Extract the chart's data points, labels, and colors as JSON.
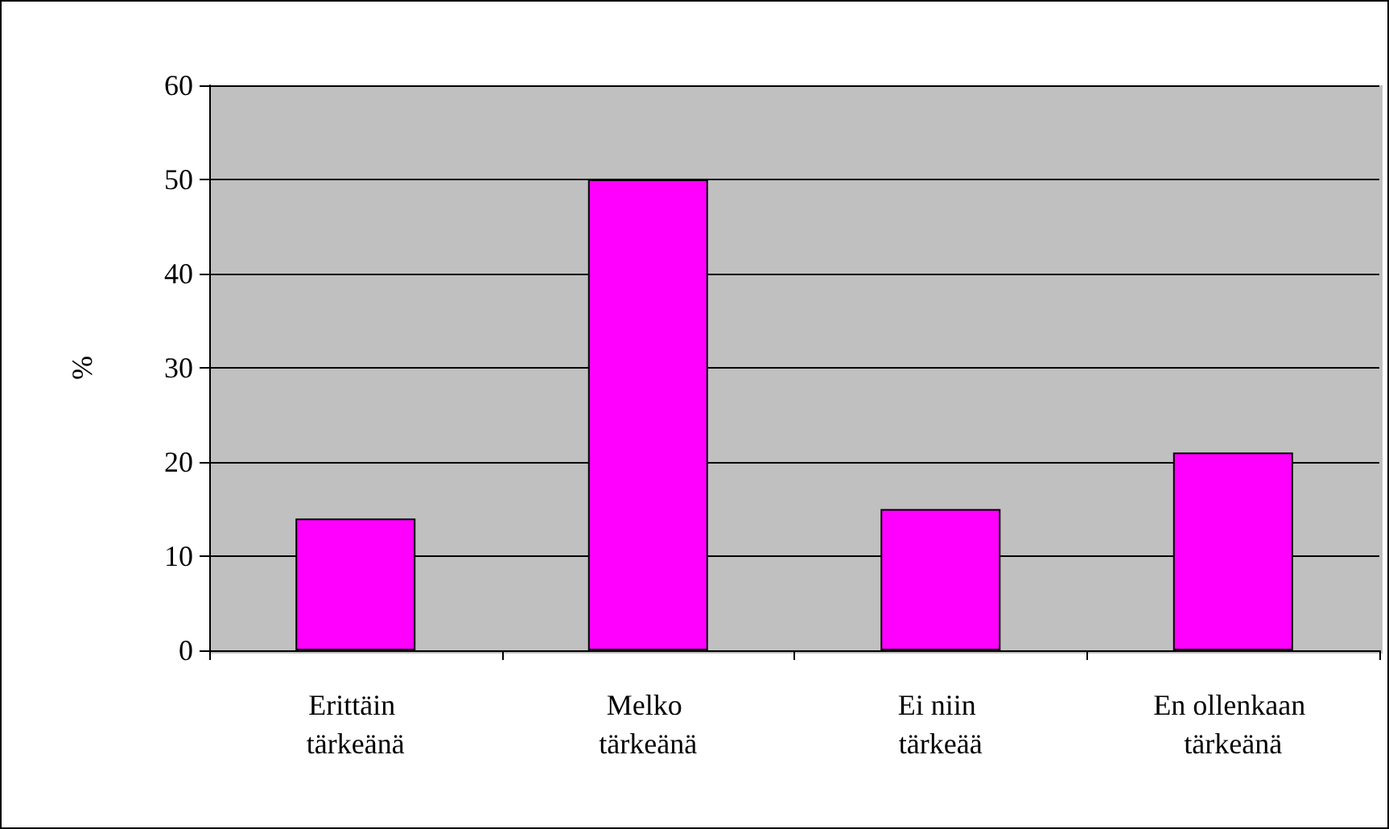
{
  "chart_data": {
    "type": "bar",
    "ylabel": "%",
    "categories": [
      "Erittäin tärkeänä",
      "Melko tärkeänä",
      "Ei niin tärkeää",
      "En ollenkaan tärkeänä"
    ],
    "values": [
      14,
      50,
      15,
      21
    ],
    "color": "#ff00ff",
    "ylim": [
      0,
      60
    ],
    "yticks": [
      0,
      10,
      20,
      30,
      40,
      50,
      60
    ],
    "grid": "y"
  }
}
